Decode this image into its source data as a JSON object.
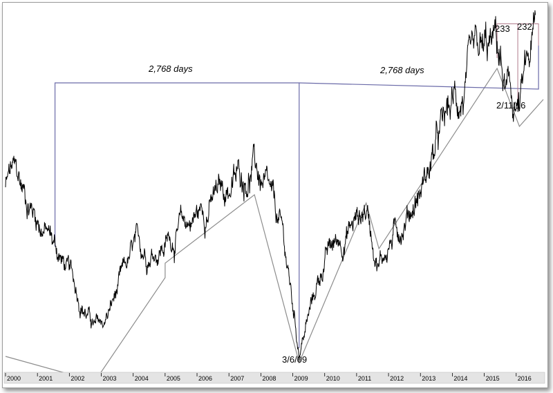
{
  "chart_data": {
    "type": "line",
    "title": "",
    "xlabel": "",
    "ylabel": "",
    "x_tick_labels": [
      "2000",
      "2001",
      "2002",
      "2003",
      "2004",
      "2005",
      "2006",
      "2007",
      "2008",
      "2009",
      "2010",
      "2011",
      "2012",
      "2013",
      "2014",
      "2015",
      "2016"
    ],
    "grid": false,
    "legend": "none",
    "annotations": {
      "span1": "2,768 days",
      "span2": "2,768 days",
      "low1": "3/6/09",
      "low2": "2/11/16",
      "count1": "233",
      "count2": "232"
    },
    "key_points": [
      {
        "x": "2000.0",
        "y": 1455
      },
      {
        "x": "2000.2",
        "y": 1527
      },
      {
        "x": "2001.5",
        "y": 1190
      },
      {
        "x": "2002.8",
        "y": 777
      },
      {
        "x": "2003.1",
        "y": 800
      },
      {
        "x": "2004.0",
        "y": 1130
      },
      {
        "x": "2005.0",
        "y": 1190
      },
      {
        "x": "2007.8",
        "y": 1565
      },
      {
        "x": "2008.7",
        "y": 1200
      },
      {
        "x": "2009.2",
        "y": 667
      },
      {
        "x": "2010.0",
        "y": 1115
      },
      {
        "x": "2011.3",
        "y": 1360
      },
      {
        "x": "2011.7",
        "y": 1100
      },
      {
        "x": "2013.0",
        "y": 1450
      },
      {
        "x": "2014.0",
        "y": 1840
      },
      {
        "x": "2015.4",
        "y": 2130
      },
      {
        "x": "2015.7",
        "y": 1870
      },
      {
        "x": "2016.1",
        "y": 1829
      },
      {
        "x": "2016.6",
        "y": 2180
      }
    ]
  },
  "colors": {
    "price": "#000000",
    "trend": "#8c8c8c",
    "span_lines": "#6a6aa8",
    "count_box": "#b07a8c",
    "axis_bar": "#e4e4e4"
  }
}
